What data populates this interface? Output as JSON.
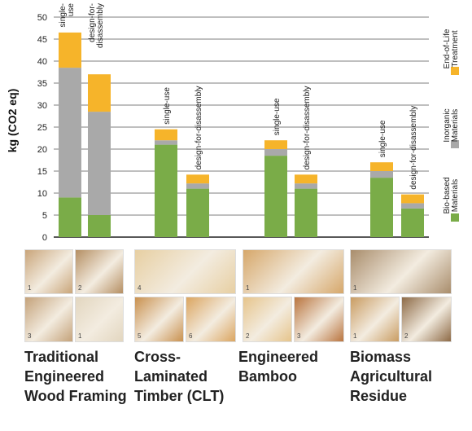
{
  "chart_data": {
    "type": "bar",
    "stacked": true,
    "ylabel": "kg (CO2 eq)",
    "ylim": [
      0,
      50
    ],
    "yticks": [
      0,
      5,
      10,
      15,
      20,
      25,
      30,
      35,
      40,
      45,
      50
    ],
    "grid": true,
    "legend_position": "right (vertical)",
    "series": [
      {
        "name": "Bio-based Materials",
        "color": "#7aac48"
      },
      {
        "name": "Inorganic Materials",
        "color": "#a9a9a9"
      },
      {
        "name": "End-of-Life Treatment",
        "color": "#f6b42a"
      }
    ],
    "groups": [
      {
        "category": "Traditional Engineered Wood Framing",
        "bars": [
          {
            "label": "single-use",
            "values": [
              9,
              29.5,
              8
            ]
          },
          {
            "label": "design-for-disassembly",
            "values": [
              5,
              23.5,
              8.5
            ]
          }
        ]
      },
      {
        "category": "Cross-Laminated Timber (CLT)",
        "bars": [
          {
            "label": "single-use",
            "values": [
              21,
              1,
              2.5
            ]
          },
          {
            "label": "design-for-disassembly",
            "values": [
              11,
              1.2,
              2
            ]
          }
        ]
      },
      {
        "category": "Engineered Bamboo",
        "bars": [
          {
            "label": "single-use",
            "values": [
              18.5,
              1.5,
              2
            ]
          },
          {
            "label": "design-for-disassembly",
            "values": [
              11,
              1.2,
              2
            ]
          }
        ]
      },
      {
        "category": "Biomass Agricultural Residue",
        "bars": [
          {
            "label": "single-use",
            "values": [
              13.5,
              1.5,
              2
            ]
          },
          {
            "label": "design-for-disassembly",
            "values": [
              6.5,
              1.2,
              2
            ]
          }
        ]
      }
    ]
  },
  "photo_groups": [
    {
      "category": "Traditional Engineered Wood Framing",
      "photos": [
        {
          "num": "1",
          "color": "#c9a57a"
        },
        {
          "num": "2",
          "color": "#b58f63"
        },
        {
          "num": "3",
          "color": "#c4a27a"
        },
        {
          "num": "1",
          "color": "#e2d6bf"
        }
      ]
    },
    {
      "category": "Cross-Laminated Timber (CLT)",
      "photos": [
        {
          "num": "4",
          "color": "#e7cfa2"
        },
        {
          "num": "5",
          "color": "#c9914f"
        },
        {
          "num": "6",
          "color": "#dba560"
        }
      ]
    },
    {
      "category": "Engineered Bamboo",
      "photos": [
        {
          "num": "1",
          "color": "#d6a76a"
        },
        {
          "num": "2",
          "color": "#e6c48b"
        },
        {
          "num": "3",
          "color": "#b9743e"
        }
      ]
    },
    {
      "category": "Biomass Agricultural Residue",
      "photos": [
        {
          "num": "1",
          "color": "#a98d6c"
        },
        {
          "num": "1",
          "color": "#c99c62"
        },
        {
          "num": "2",
          "color": "#8d6a46"
        }
      ]
    }
  ],
  "category_labels": [
    "Traditional\nEngineered\nWood Framing",
    "Cross-\nLaminated\nTimber (CLT)",
    "Engineered\nBamboo",
    "Biomass\nAgricultural\nResidue"
  ]
}
